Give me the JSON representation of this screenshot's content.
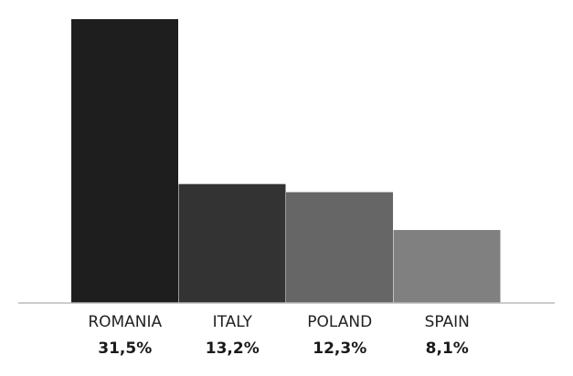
{
  "chart_data": {
    "type": "bar",
    "categories": [
      "ROMANIA",
      "ITALY",
      "POLAND",
      "SPAIN"
    ],
    "values": [
      31.5,
      13.2,
      12.3,
      8.1
    ],
    "value_labels": [
      "31,5%",
      "13,2%",
      "12,3%",
      "8,1%"
    ],
    "unit": "%",
    "colors": [
      "#1e1e1e",
      "#333333",
      "#666666",
      "#808080"
    ],
    "baseline_color": "#bbbbbb",
    "ylim": [
      0,
      31.5
    ],
    "grid": false,
    "legend": "none"
  }
}
